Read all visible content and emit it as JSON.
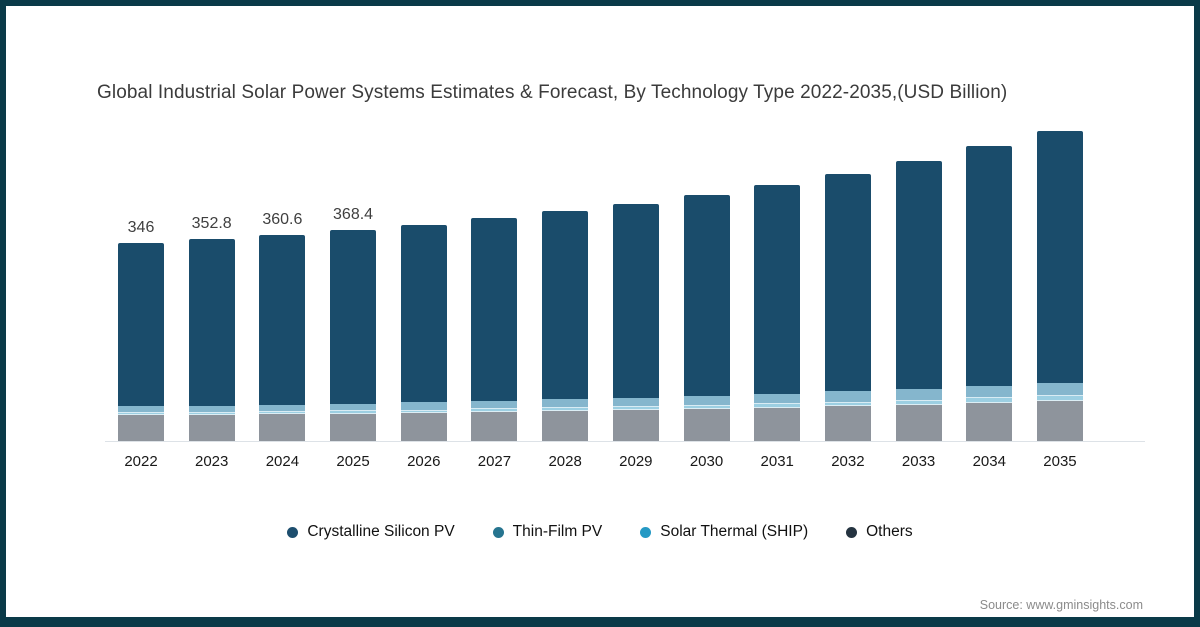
{
  "title": "Global Industrial Solar Power Systems Estimates & Forecast, By Technology Type 2022-2035,(USD Billion)",
  "source": "Source: www.gminsights.com",
  "frame_color": "#0a3a48",
  "legend": [
    {
      "label": "Crystalline Silicon PV",
      "color": "#1d4e6e"
    },
    {
      "label": "Thin-Film PV",
      "color": "#26748f"
    },
    {
      "label": "Solar Thermal (SHIP)",
      "color": "#2599c4"
    },
    {
      "label": "Others",
      "color": "#243340"
    }
  ],
  "chart_data": {
    "type": "bar",
    "stacked": true,
    "title": "Global Industrial Solar Power Systems Estimates & Forecast, By Technology Type 2022-2035,(USD Billion)",
    "unit": "USD Billion",
    "categories": [
      "2022",
      "2023",
      "2024",
      "2025",
      "2026",
      "2027",
      "2028",
      "2029",
      "2030",
      "2031",
      "2032",
      "2033",
      "2034",
      "2035"
    ],
    "totals": [
      346,
      352.8,
      360.6,
      368.4,
      377,
      390,
      403,
      414,
      430,
      447,
      467,
      490,
      515,
      542
    ],
    "data_labels": [
      "346",
      "352.8",
      "360.6",
      "368.4",
      "",
      "",
      "",
      "",
      "",
      "",
      "",
      "",
      "",
      ""
    ],
    "series_order": "bottom-to-top",
    "series": [
      {
        "name": "Others",
        "color": "#8e949c",
        "values": [
          45.0,
          45.9,
          46.9,
          47.9,
          49.0,
          50.7,
          52.4,
          53.8,
          55.9,
          58.1,
          60.7,
          63.7,
          67.0,
          70.5
        ]
      },
      {
        "name": "Solar Thermal (SHIP)",
        "color": "#9ccfe2",
        "values": [
          5.2,
          5.4,
          5.6,
          5.9,
          6.1,
          6.4,
          6.8,
          7.1,
          7.4,
          7.8,
          8.2,
          8.7,
          9.1,
          9.6
        ]
      },
      {
        "name": "Thin-Film PV",
        "color": "#85b6cd",
        "values": [
          10.4,
          10.8,
          11.3,
          11.8,
          12.4,
          13.1,
          13.9,
          14.6,
          15.5,
          16.5,
          17.7,
          18.9,
          20.3,
          21.7
        ]
      },
      {
        "name": "Crystalline Silicon PV",
        "color": "#1a4c6b",
        "values": [
          285.4,
          290.7,
          296.8,
          302.8,
          309.5,
          319.8,
          329.9,
          338.5,
          351.2,
          364.6,
          380.4,
          398.7,
          418.6,
          440.2
        ]
      }
    ],
    "xlabel": "",
    "ylabel": "",
    "ylim": [
      0,
      560
    ],
    "grid": false,
    "legend_position": "bottom",
    "legend_entries": [
      "Crystalline Silicon PV",
      "Thin-Film PV",
      "Solar Thermal (SHIP)",
      "Others"
    ]
  }
}
